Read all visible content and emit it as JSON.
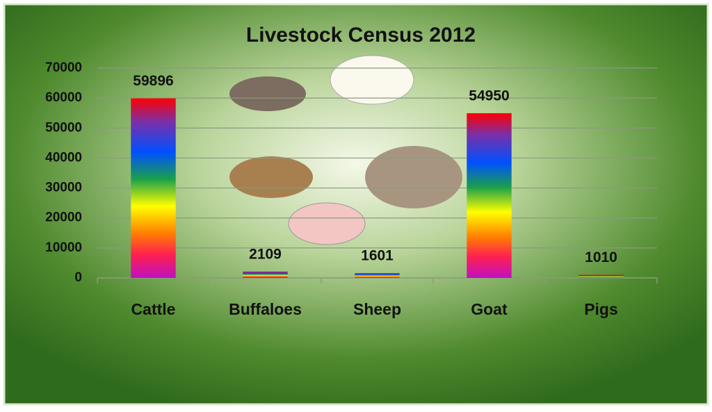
{
  "chart_data": {
    "type": "bar",
    "title": "Livestock Census 2012",
    "categories": [
      "Cattle",
      "Buffaloes",
      "Sheep",
      "Goat",
      "Pigs"
    ],
    "values": [
      59896,
      2109,
      1601,
      54950,
      1010
    ],
    "ylim": [
      0,
      70000
    ],
    "yticks": [
      0,
      10000,
      20000,
      30000,
      40000,
      50000,
      60000,
      70000
    ],
    "grid": true,
    "color": "rainbow"
  }
}
